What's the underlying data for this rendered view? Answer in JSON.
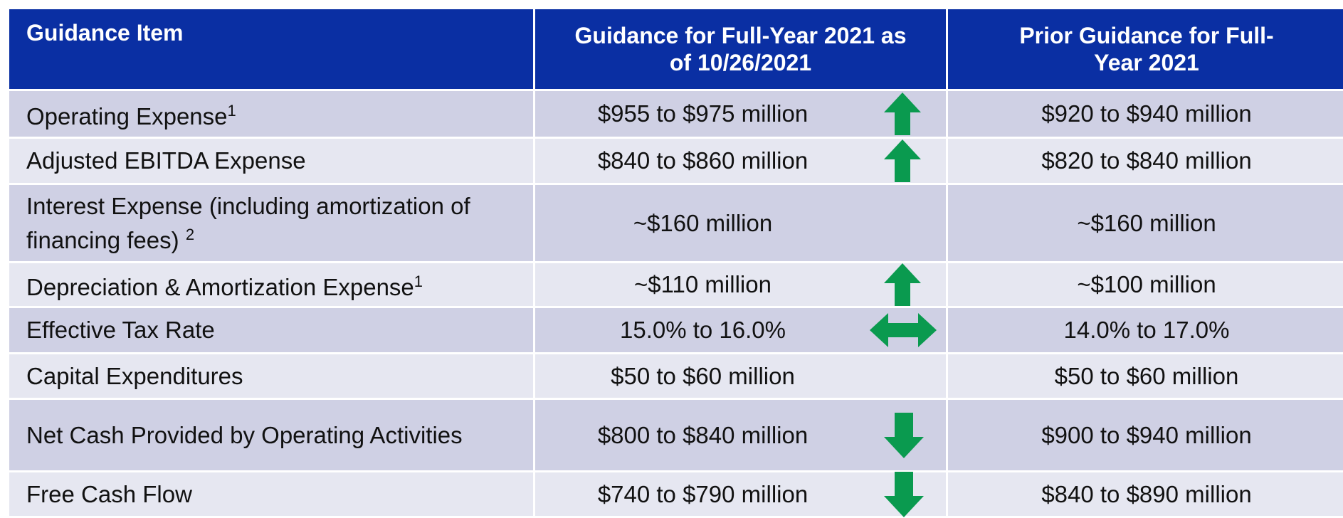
{
  "table": {
    "header": [
      "Guidance Item",
      "Guidance for Full-Year 2021 as of 10/26/2021",
      "Prior Guidance for Full-Year 2021"
    ],
    "rows": [
      {
        "item": "Operating Expense",
        "note": "1",
        "current": "$955 to $975 million",
        "prior": "$920 to $940 million"
      },
      {
        "item": "Adjusted EBITDA Expense",
        "current": "$840 to $860 million",
        "prior": "$820 to $840 million"
      },
      {
        "item": "Interest Expense (including amortization of financing fees)",
        "note": "2",
        "current": "~$160 million",
        "prior": "~$160 million"
      },
      {
        "item": "Depreciation & Amortization Expense",
        "note": "1",
        "current": "~$110 million",
        "prior": "~$100 million"
      },
      {
        "item": "Effective Tax Rate",
        "current": "15.0% to 16.0%",
        "prior": "14.0% to 17.0%"
      },
      {
        "item": "Capital Expenditures",
        "current": "$50 to $60 million",
        "prior": "$50 to $60 million"
      },
      {
        "item": "Net Cash Provided by Operating Activities",
        "current": "$800 to $840 million",
        "prior": "$900 to $940 million"
      },
      {
        "item": "Free Cash Flow",
        "current": "$740 to $790 million",
        "prior": "$840 to $890 million"
      }
    ]
  }
}
